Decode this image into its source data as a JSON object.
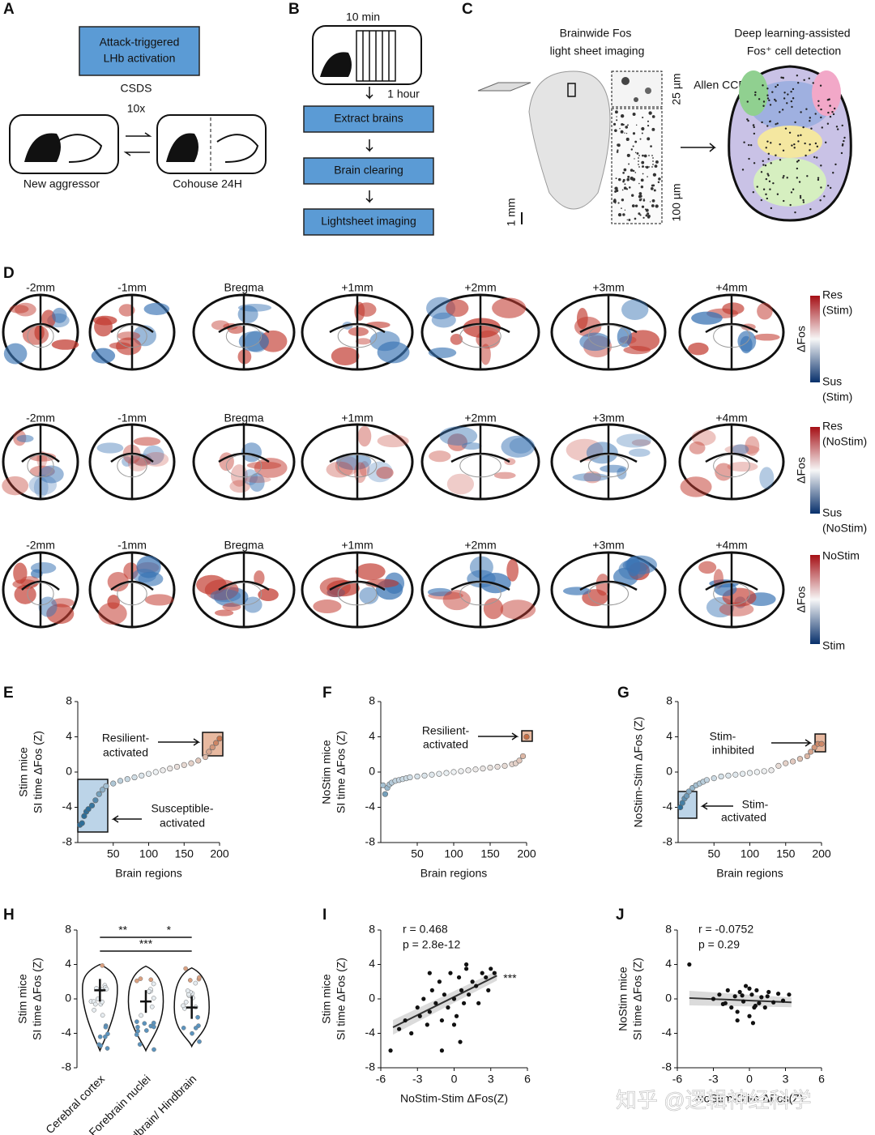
{
  "panels": {
    "A": {
      "label": "A",
      "box": [
        "Attack-triggered",
        "LHb activation"
      ],
      "csds": "CSDS",
      "times": "10x",
      "left": "New aggressor",
      "right": "Cohouse 24H"
    },
    "B": {
      "label": "B",
      "duration": "10 min",
      "wait": "1 hour",
      "steps": [
        "Extract brains",
        "Brain clearing",
        "Lightsheet imaging"
      ]
    },
    "C": {
      "label": "C",
      "imaging": [
        "Brainwide Fos",
        "light sheet imaging"
      ],
      "detection": [
        "Deep learning-assisted",
        "Fos⁺  cell detection"
      ],
      "atlas": "Allen CCF",
      "scale_small": "25 µm",
      "scale_large": "100 µm",
      "scale_brain": "1 mm"
    },
    "D": {
      "label": "D",
      "sections": [
        "-2mm",
        "-1mm",
        "Bregma",
        "+1mm",
        "+2mm",
        "+3mm",
        "+4mm"
      ],
      "rows": [
        {
          "colorbar": [
            "Res",
            "(Stim)",
            "Sus",
            "(Stim)"
          ],
          "label": "ΔFos"
        },
        {
          "colorbar": [
            "Res",
            "(NoStim)",
            "Sus",
            "(NoStim)"
          ],
          "label": "ΔFos"
        },
        {
          "colorbar": [
            "NoStim",
            "Stim"
          ],
          "label": "ΔFos"
        }
      ]
    }
  },
  "watermark": "知乎 @逻辑神经科学",
  "chart_data": [
    {
      "type": "scatter",
      "panel": "E",
      "ylabel": [
        "Stim mice",
        "SI time ΔFos (Z)"
      ],
      "xlabel": "Brain regions",
      "annotations": [
        "Resilient-",
        "activated",
        "Susceptible-",
        "activated"
      ],
      "x": [
        3,
        6,
        9,
        12,
        15,
        20,
        25,
        30,
        35,
        40,
        50,
        60,
        70,
        80,
        90,
        100,
        110,
        120,
        130,
        140,
        150,
        160,
        170,
        180,
        185,
        190,
        195,
        200
      ],
      "values": [
        -6,
        -5.8,
        -5,
        -4.5,
        -4.2,
        -3.8,
        -3.2,
        -2.5,
        -2,
        -1.6,
        -1.3,
        -1,
        -0.8,
        -0.6,
        -0.4,
        -0.2,
        0,
        0.2,
        0.4,
        0.6,
        0.8,
        1,
        1.3,
        1.7,
        2.3,
        2.8,
        3.3,
        3.8
      ],
      "colors": [
        "#2d6e99",
        "#eef2f4",
        "#c66e45"
      ],
      "xlim": [
        0,
        200
      ],
      "ylim": [
        -8,
        8
      ],
      "xticks": [
        50,
        100,
        150,
        200
      ],
      "yticks": [
        -8,
        -4,
        0,
        4,
        8
      ]
    },
    {
      "type": "scatter",
      "panel": "F",
      "ylabel": [
        "NoStim mice",
        "SI time ΔFos (Z)"
      ],
      "xlabel": "Brain regions",
      "annotations": [
        "Resilient-",
        "activated"
      ],
      "x": [
        3,
        6,
        9,
        12,
        15,
        20,
        25,
        30,
        35,
        40,
        50,
        60,
        70,
        80,
        90,
        100,
        110,
        120,
        130,
        140,
        150,
        160,
        170,
        180,
        185,
        190,
        195,
        200
      ],
      "values": [
        -1.5,
        -2.5,
        -1.8,
        -1.4,
        -1.2,
        -1,
        -0.9,
        -0.8,
        -0.7,
        -0.6,
        -0.5,
        -0.4,
        -0.3,
        -0.2,
        -0.1,
        0,
        0.1,
        0.2,
        0.3,
        0.4,
        0.5,
        0.6,
        0.7,
        0.9,
        1,
        1.3,
        1.8,
        4
      ],
      "colors": [
        "#2d6e99",
        "#eef2f4",
        "#c66e45"
      ],
      "xlim": [
        0,
        200
      ],
      "ylim": [
        -8,
        8
      ],
      "xticks": [
        50,
        100,
        150,
        200
      ],
      "yticks": [
        -8,
        -4,
        0,
        4,
        8
      ]
    },
    {
      "type": "scatter",
      "panel": "G",
      "ylabel": [
        "NoStim-Stim ΔFos (Z)"
      ],
      "xlabel": "Brain regions",
      "annotations": [
        "Stim-",
        "inhibited",
        "Stim-",
        "activated"
      ],
      "x": [
        3,
        6,
        9,
        12,
        15,
        20,
        25,
        30,
        35,
        40,
        50,
        60,
        70,
        80,
        90,
        100,
        110,
        120,
        130,
        140,
        150,
        160,
        170,
        180,
        185,
        190,
        195,
        200
      ],
      "values": [
        -4,
        -3.5,
        -3,
        -2.7,
        -2.2,
        -1.8,
        -1.5,
        -1.3,
        -1.1,
        -0.9,
        -0.7,
        -0.5,
        -0.4,
        -0.3,
        -0.2,
        -0.1,
        0,
        0.1,
        0.2,
        0.7,
        1,
        1.2,
        1.5,
        1.8,
        2.3,
        2.8,
        3.2,
        3.2
      ],
      "colors": [
        "#2d6e99",
        "#eef2f4",
        "#c66e45"
      ],
      "xlim": [
        0,
        200
      ],
      "ylim": [
        -8,
        8
      ],
      "xticks": [
        50,
        100,
        150,
        200
      ],
      "yticks": [
        -8,
        -4,
        0,
        4,
        8
      ]
    },
    {
      "type": "violin",
      "panel": "H",
      "ylabel": [
        "Stim mice",
        "SI time ΔFos (Z)"
      ],
      "categories": [
        "Cerebral cortex",
        "Forebrain nuclei",
        "Midbrain/ Hindbrain"
      ],
      "values": [
        1,
        -0.3,
        -1
      ],
      "ranges": [
        [
          -6,
          4
        ],
        [
          -6,
          3.8
        ],
        [
          -5.5,
          3.6
        ]
      ],
      "annotations": [
        "**",
        "*",
        "***"
      ],
      "ylim": [
        -8,
        8
      ],
      "yticks": [
        -8,
        -4,
        0,
        4,
        8
      ]
    },
    {
      "type": "correlation",
      "panel": "I",
      "ylabel": [
        "Stim mice",
        "SI time ΔFos (Z)"
      ],
      "xlabel": "NoStim-Stim ΔFos(Z)",
      "stats": [
        "r = 0.468",
        "p = 2.8e-12"
      ],
      "significance": "***",
      "x": [
        -5.2,
        -4.5,
        -4,
        -3.5,
        -3,
        -2.8,
        -2.5,
        -2.2,
        -2,
        -1.8,
        -1.5,
        -1.2,
        -1,
        -0.8,
        -0.5,
        -0.3,
        0,
        0.2,
        0.4,
        0.6,
        0.8,
        1,
        1.2,
        1.5,
        1.8,
        2,
        2.3,
        2.6,
        3,
        3.3,
        -1,
        0.5,
        1,
        -2,
        0,
        2.8
      ],
      "values": [
        -6,
        -3.5,
        -2.5,
        -4,
        -1,
        -2,
        0,
        -3,
        -1.5,
        1,
        -0.5,
        2,
        -2.5,
        0.5,
        -1,
        3,
        0,
        -2,
        2.5,
        1,
        -0.5,
        3.5,
        0.5,
        2,
        1.5,
        -0.5,
        3,
        2.5,
        3.5,
        3,
        -6,
        -5,
        4,
        3,
        -3,
        1
      ],
      "fit": {
        "x": [
          -5,
          3.5
        ],
        "y": [
          -3.3,
          2.7
        ]
      },
      "xlim": [
        -6,
        6
      ],
      "ylim": [
        -8,
        8
      ],
      "xticks": [
        -6,
        -3,
        0,
        3,
        6
      ],
      "yticks": [
        -8,
        -4,
        0,
        4,
        8
      ]
    },
    {
      "type": "correlation",
      "panel": "J",
      "ylabel": [
        "NoStim mice",
        "SI time ΔFos (Z)"
      ],
      "xlabel": "NoStim-Stim ΔFos(Z)",
      "stats": [
        "r = -0.0752",
        "p = 0.29"
      ],
      "x": [
        -5,
        -3,
        -2.5,
        -2,
        -1.8,
        -1.5,
        -1.2,
        -1,
        -0.8,
        -0.5,
        -0.3,
        0,
        0.2,
        0.4,
        0.6,
        0.8,
        1,
        1.3,
        1.6,
        2,
        2.4,
        2.8,
        3.3,
        -1,
        0,
        0.5,
        1.5,
        -2.2,
        0.3,
        -0.6
      ],
      "values": [
        4,
        0,
        0.5,
        -0.5,
        1,
        -1,
        0.3,
        -1.5,
        0.8,
        -0.3,
        1.5,
        -2,
        0.5,
        -1,
        1,
        -0.5,
        0.2,
        -1,
        0.8,
        -0.4,
        0.6,
        -0.2,
        0.5,
        -2.5,
        1.2,
        -0.8,
        0.3,
        -0.6,
        -2.8,
        0.4
      ],
      "fit": {
        "x": [
          -5,
          3.5
        ],
        "y": [
          0.1,
          -0.4
        ]
      },
      "xlim": [
        -6,
        6
      ],
      "ylim": [
        -8,
        8
      ],
      "xticks": [
        -6,
        -3,
        0,
        3,
        6
      ],
      "yticks": [
        -8,
        -4,
        0,
        4,
        8
      ]
    }
  ]
}
